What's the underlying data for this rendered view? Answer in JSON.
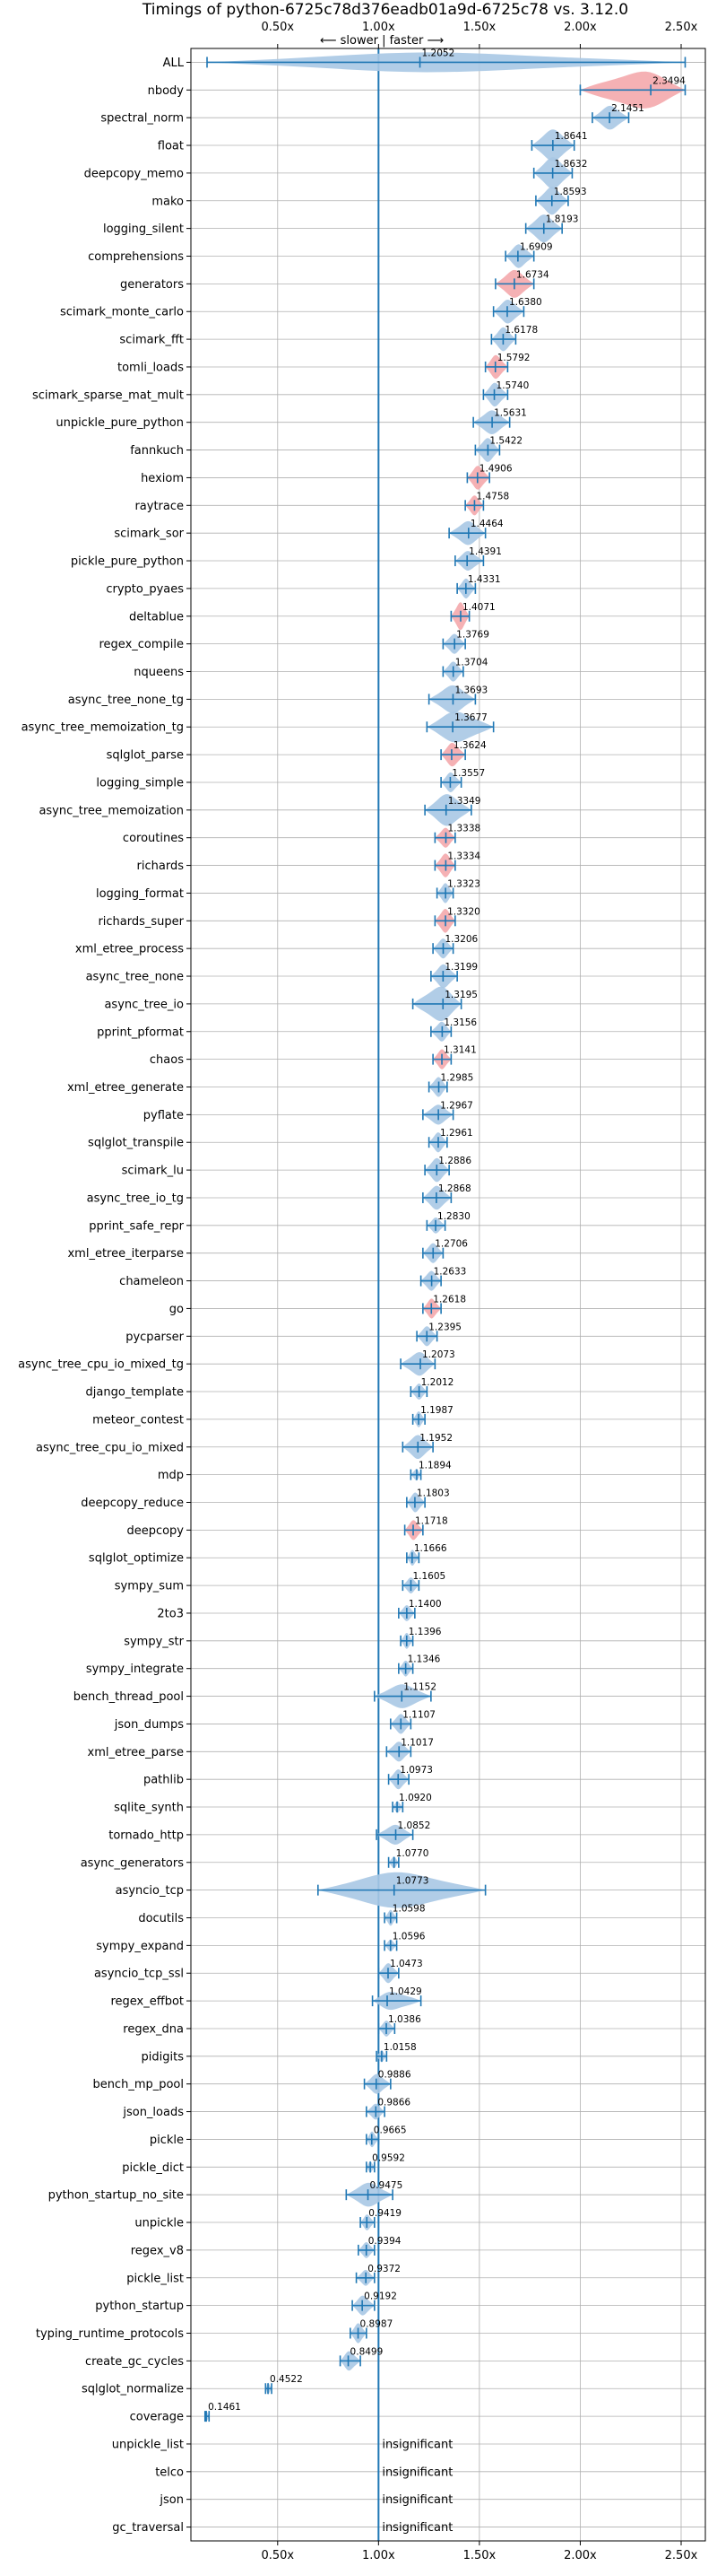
{
  "chart_data": {
    "type": "violin",
    "title": "Timings of python-6725c78d376eadb01a9d-6725c78 vs. 3.12.0",
    "top_label": "⟵ slower | faster ⟶",
    "xlim": [
      0.07,
      2.62
    ],
    "xticks": [
      0.5,
      1.0,
      1.5,
      2.0,
      2.5
    ],
    "xtick_labels": [
      "0.50x",
      "1.00x",
      "1.50x",
      "2.00x",
      "2.50x"
    ],
    "reference_line": 1.0,
    "grid": true,
    "insignificant_label": "insignificant",
    "colors": {
      "line": "#1f77b4",
      "violin_faster": "#a9c8e4",
      "violin_slower": "#f4a8ac",
      "grid": "#b0b0b0"
    },
    "categories": [
      "ALL",
      "nbody",
      "spectral_norm",
      "float",
      "deepcopy_memo",
      "mako",
      "logging_silent",
      "comprehensions",
      "generators",
      "scimark_monte_carlo",
      "scimark_fft",
      "tomli_loads",
      "scimark_sparse_mat_mult",
      "unpickle_pure_python",
      "fannkuch",
      "hexiom",
      "raytrace",
      "scimark_sor",
      "pickle_pure_python",
      "crypto_pyaes",
      "deltablue",
      "regex_compile",
      "nqueens",
      "async_tree_none_tg",
      "async_tree_memoization_tg",
      "sqlglot_parse",
      "logging_simple",
      "async_tree_memoization",
      "coroutines",
      "richards",
      "logging_format",
      "richards_super",
      "xml_etree_process",
      "async_tree_none",
      "async_tree_io",
      "pprint_pformat",
      "chaos",
      "xml_etree_generate",
      "pyflate",
      "sqlglot_transpile",
      "scimark_lu",
      "async_tree_io_tg",
      "pprint_safe_repr",
      "xml_etree_iterparse",
      "chameleon",
      "go",
      "pycparser",
      "async_tree_cpu_io_mixed_tg",
      "django_template",
      "meteor_contest",
      "async_tree_cpu_io_mixed",
      "mdp",
      "deepcopy_reduce",
      "deepcopy",
      "sqlglot_optimize",
      "sympy_sum",
      "2to3",
      "sympy_str",
      "sympy_integrate",
      "bench_thread_pool",
      "json_dumps",
      "xml_etree_parse",
      "pathlib",
      "sqlite_synth",
      "tornado_http",
      "async_generators",
      "asyncio_tcp",
      "docutils",
      "sympy_expand",
      "asyncio_tcp_ssl",
      "regex_effbot",
      "regex_dna",
      "pidigits",
      "bench_mp_pool",
      "json_loads",
      "pickle",
      "pickle_dict",
      "python_startup_no_site",
      "unpickle",
      "regex_v8",
      "pickle_list",
      "python_startup",
      "typing_runtime_protocols",
      "create_gc_cycles",
      "sqlglot_normalize",
      "coverage",
      "unpickle_list",
      "telco",
      "json",
      "gc_traversal"
    ],
    "values": [
      1.2052,
      2.3494,
      2.1451,
      1.8641,
      1.8632,
      1.8593,
      1.8193,
      1.6909,
      1.6734,
      1.638,
      1.6178,
      1.5792,
      1.574,
      1.5631,
      1.5422,
      1.4906,
      1.4758,
      1.4464,
      1.4391,
      1.4331,
      1.4071,
      1.3769,
      1.3704,
      1.3693,
      1.3677,
      1.3624,
      1.3557,
      1.3349,
      1.3338,
      1.3334,
      1.3323,
      1.332,
      1.3206,
      1.3199,
      1.3195,
      1.3156,
      1.3141,
      1.2985,
      1.2967,
      1.2961,
      1.2886,
      1.2868,
      1.283,
      1.2706,
      1.2633,
      1.2618,
      1.2395,
      1.2073,
      1.2012,
      1.1987,
      1.1952,
      1.1894,
      1.1803,
      1.1718,
      1.1666,
      1.1605,
      1.14,
      1.1396,
      1.1346,
      1.1152,
      1.1107,
      1.1017,
      1.0973,
      1.092,
      1.0852,
      1.077,
      1.0773,
      1.0598,
      1.0596,
      1.0473,
      1.0429,
      1.0386,
      1.0158,
      0.9886,
      0.9866,
      0.9665,
      0.9592,
      0.9475,
      0.9419,
      0.9394,
      0.9372,
      0.9192,
      0.8987,
      0.8499,
      0.4522,
      0.1461,
      null,
      null,
      null,
      null
    ],
    "value_labels": [
      "1.2052",
      "2.3494",
      "2.1451",
      "1.8641",
      "1.8632",
      "1.8593",
      "1.8193",
      "1.6909",
      "1.6734",
      "1.6380",
      "1.6178",
      "1.5792",
      "1.5740",
      "1.5631",
      "1.5422",
      "1.4906",
      "1.4758",
      "1.4464",
      "1.4391",
      "1.4331",
      "1.4071",
      "1.3769",
      "1.3704",
      "1.3693",
      "1.3677",
      "1.3624",
      "1.3557",
      "1.3349",
      "1.3338",
      "1.3334",
      "1.3323",
      "1.3320",
      "1.3206",
      "1.3199",
      "1.3195",
      "1.3156",
      "1.3141",
      "1.2985",
      "1.2967",
      "1.2961",
      "1.2886",
      "1.2868",
      "1.2830",
      "1.2706",
      "1.2633",
      "1.2618",
      "1.2395",
      "1.2073",
      "1.2012",
      "1.1987",
      "1.1952",
      "1.1894",
      "1.1803",
      "1.1718",
      "1.1666",
      "1.1605",
      "1.1400",
      "1.1396",
      "1.1346",
      "1.1152",
      "1.1107",
      "1.1017",
      "1.0973",
      "1.0920",
      "1.0852",
      "1.0770",
      "1.0773",
      "1.0598",
      "1.0596",
      "1.0473",
      "1.0429",
      "1.0386",
      "1.0158",
      "0.9886",
      "0.9866",
      "0.9665",
      "0.9592",
      "0.9475",
      "0.9419",
      "0.9394",
      "0.9372",
      "0.9192",
      "0.8987",
      "0.8499",
      "0.4522",
      "0.1461",
      "",
      "",
      "",
      ""
    ],
    "ranges": [
      [
        0.15,
        2.52
      ],
      [
        2.0,
        2.52
      ],
      [
        2.06,
        2.24
      ],
      [
        1.76,
        1.97
      ],
      [
        1.77,
        1.96
      ],
      [
        1.78,
        1.94
      ],
      [
        1.73,
        1.91
      ],
      [
        1.63,
        1.77
      ],
      [
        1.58,
        1.77
      ],
      [
        1.57,
        1.72
      ],
      [
        1.56,
        1.68
      ],
      [
        1.53,
        1.64
      ],
      [
        1.52,
        1.64
      ],
      [
        1.47,
        1.65
      ],
      [
        1.48,
        1.6
      ],
      [
        1.44,
        1.55
      ],
      [
        1.43,
        1.52
      ],
      [
        1.35,
        1.53
      ],
      [
        1.38,
        1.52
      ],
      [
        1.39,
        1.48
      ],
      [
        1.36,
        1.45
      ],
      [
        1.32,
        1.43
      ],
      [
        1.32,
        1.42
      ],
      [
        1.25,
        1.48
      ],
      [
        1.24,
        1.57
      ],
      [
        1.31,
        1.43
      ],
      [
        1.31,
        1.41
      ],
      [
        1.23,
        1.46
      ],
      [
        1.28,
        1.38
      ],
      [
        1.28,
        1.38
      ],
      [
        1.29,
        1.37
      ],
      [
        1.28,
        1.38
      ],
      [
        1.27,
        1.37
      ],
      [
        1.26,
        1.39
      ],
      [
        1.17,
        1.41
      ],
      [
        1.26,
        1.36
      ],
      [
        1.27,
        1.36
      ],
      [
        1.25,
        1.34
      ],
      [
        1.22,
        1.37
      ],
      [
        1.25,
        1.34
      ],
      [
        1.23,
        1.35
      ],
      [
        1.22,
        1.36
      ],
      [
        1.24,
        1.33
      ],
      [
        1.22,
        1.32
      ],
      [
        1.21,
        1.31
      ],
      [
        1.22,
        1.31
      ],
      [
        1.19,
        1.29
      ],
      [
        1.11,
        1.28
      ],
      [
        1.16,
        1.24
      ],
      [
        1.17,
        1.23
      ],
      [
        1.12,
        1.27
      ],
      [
        1.16,
        1.21
      ],
      [
        1.14,
        1.23
      ],
      [
        1.13,
        1.22
      ],
      [
        1.14,
        1.2
      ],
      [
        1.12,
        1.2
      ],
      [
        1.1,
        1.18
      ],
      [
        1.11,
        1.17
      ],
      [
        1.1,
        1.17
      ],
      [
        0.98,
        1.26
      ],
      [
        1.06,
        1.16
      ],
      [
        1.04,
        1.16
      ],
      [
        1.05,
        1.15
      ],
      [
        1.07,
        1.12
      ],
      [
        0.99,
        1.17
      ],
      [
        1.05,
        1.1
      ],
      [
        0.7,
        1.53
      ],
      [
        1.03,
        1.09
      ],
      [
        1.03,
        1.09
      ],
      [
        1.0,
        1.1
      ],
      [
        0.97,
        1.21
      ],
      [
        1.0,
        1.08
      ],
      [
        0.99,
        1.04
      ],
      [
        0.93,
        1.06
      ],
      [
        0.94,
        1.03
      ],
      [
        0.94,
        1.0
      ],
      [
        0.94,
        0.98
      ],
      [
        0.84,
        1.07
      ],
      [
        0.91,
        0.98
      ],
      [
        0.9,
        0.98
      ],
      [
        0.89,
        0.98
      ],
      [
        0.87,
        0.98
      ],
      [
        0.86,
        0.94
      ],
      [
        0.81,
        0.91
      ],
      [
        0.44,
        0.47
      ],
      [
        0.14,
        0.16
      ],
      null,
      null,
      null,
      null
    ],
    "widths": [
      0.5,
      1.0,
      0.6,
      0.8,
      0.8,
      0.7,
      0.7,
      0.6,
      0.7,
      0.6,
      0.6,
      0.6,
      0.6,
      0.6,
      0.6,
      0.6,
      0.5,
      0.6,
      0.5,
      0.5,
      0.7,
      0.5,
      0.5,
      0.7,
      0.8,
      0.6,
      0.5,
      0.8,
      0.5,
      0.6,
      0.5,
      0.6,
      0.5,
      0.6,
      0.9,
      0.5,
      0.5,
      0.5,
      0.5,
      0.5,
      0.6,
      0.6,
      0.4,
      0.5,
      0.5,
      0.5,
      0.5,
      0.6,
      0.4,
      0.4,
      0.6,
      0.3,
      0.5,
      0.5,
      0.4,
      0.4,
      0.4,
      0.4,
      0.4,
      0.6,
      0.5,
      0.5,
      0.5,
      0.3,
      0.5,
      0.3,
      0.9,
      0.4,
      0.3,
      0.5,
      0.5,
      0.4,
      0.3,
      0.5,
      0.4,
      0.4,
      0.3,
      0.6,
      0.4,
      0.4,
      0.4,
      0.5,
      0.5,
      0.5,
      0.3,
      0.3,
      0,
      0,
      0,
      0
    ],
    "slower_highlight": [
      false,
      true,
      false,
      false,
      false,
      false,
      false,
      false,
      true,
      false,
      false,
      true,
      false,
      false,
      false,
      true,
      true,
      false,
      false,
      false,
      true,
      false,
      false,
      false,
      false,
      true,
      false,
      false,
      true,
      true,
      false,
      true,
      false,
      false,
      false,
      false,
      true,
      false,
      false,
      false,
      false,
      false,
      false,
      false,
      false,
      true,
      false,
      false,
      false,
      false,
      false,
      false,
      false,
      true,
      false,
      false,
      false,
      false,
      false,
      false,
      false,
      false,
      false,
      false,
      false,
      false,
      false,
      false,
      false,
      false,
      false,
      false,
      false,
      false,
      false,
      false,
      false,
      false,
      false,
      false,
      false,
      false,
      false,
      false,
      false,
      false,
      false,
      false,
      false,
      false
    ]
  }
}
